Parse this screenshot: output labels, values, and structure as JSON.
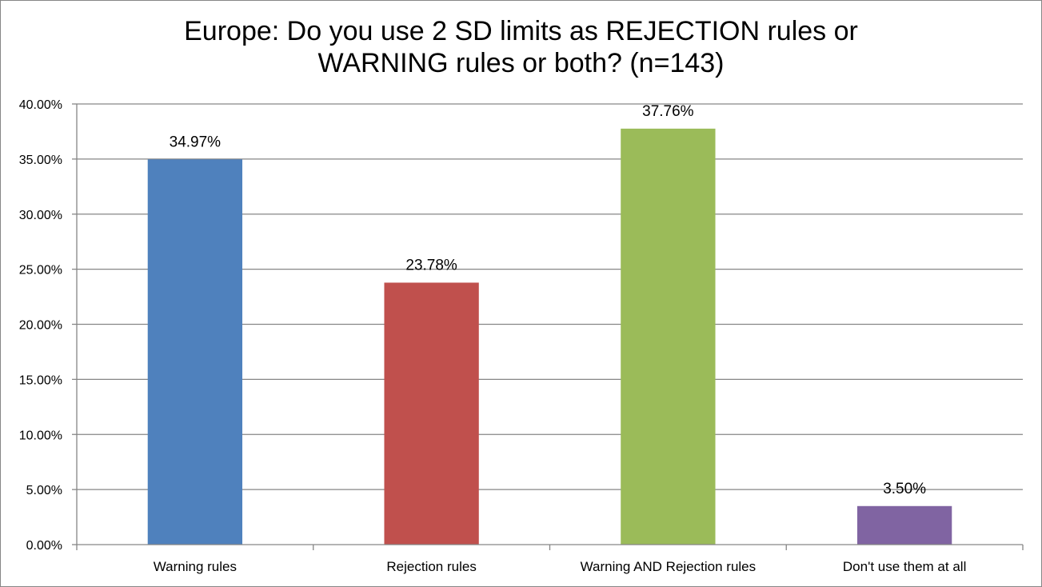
{
  "chart_data": {
    "type": "bar",
    "title_lines": [
      "Europe: Do you use 2 SD limits as REJECTION rules or",
      "WARNING rules or both? (n=143)"
    ],
    "categories": [
      "Warning rules",
      "Rejection rules",
      "Warning AND Rejection rules",
      "Don't use them at all"
    ],
    "values": [
      34.97,
      23.78,
      37.76,
      3.5
    ],
    "data_labels": [
      "34.97%",
      "23.78%",
      "37.76%",
      "3.50%"
    ],
    "colors": [
      "#4f81bd",
      "#c0504d",
      "#9bbb59",
      "#8064a2"
    ],
    "ylim": [
      0,
      40
    ],
    "yticks": [
      0,
      5,
      10,
      15,
      20,
      25,
      30,
      35,
      40
    ],
    "ytick_labels": [
      "0.00%",
      "5.00%",
      "10.00%",
      "15.00%",
      "20.00%",
      "25.00%",
      "30.00%",
      "35.00%",
      "40.00%"
    ],
    "xlabel": "",
    "ylabel": "",
    "grid": true,
    "legend": "none"
  }
}
